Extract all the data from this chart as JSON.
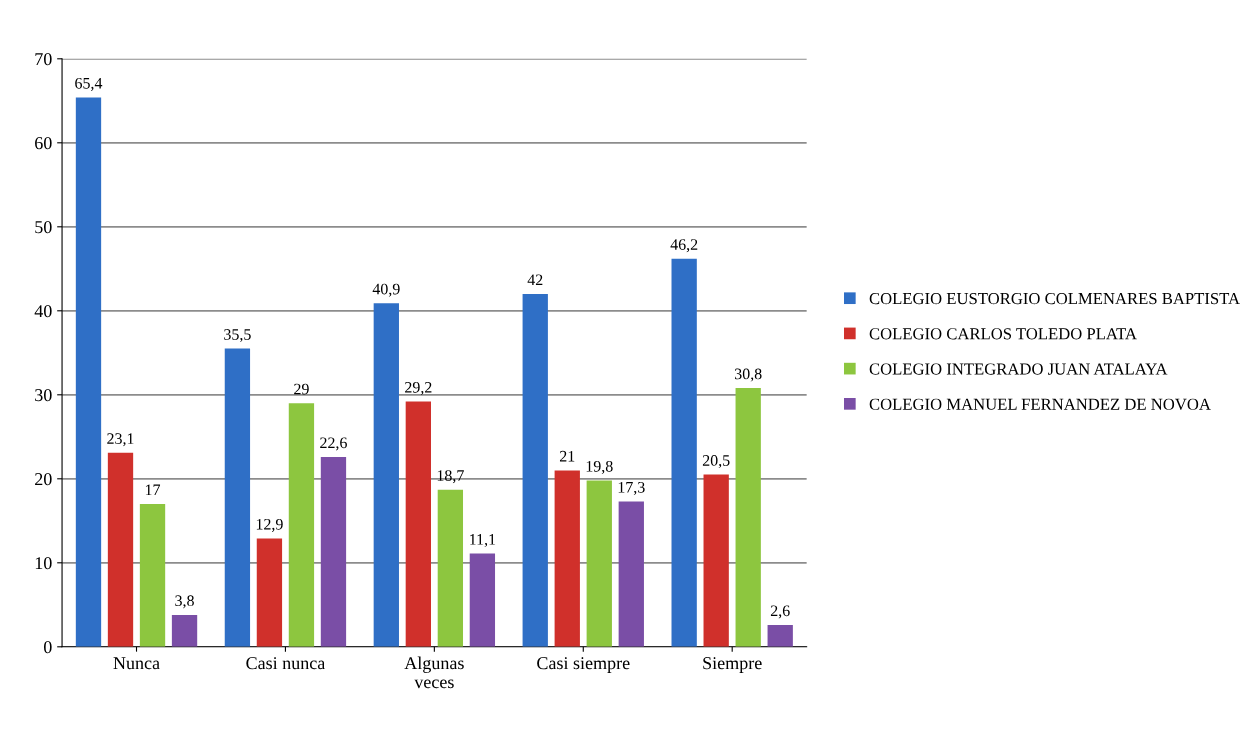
{
  "chart_data": {
    "type": "bar",
    "categories": [
      "Nunca",
      "Casi nunca",
      "Algunas\nveces",
      "Casi siempre",
      "Siempre"
    ],
    "series": [
      {
        "name": "COLEGIO EUSTORGIO COLMENARES BAPTISTA",
        "color": "#2f6fc6",
        "values": [
          65.4,
          35.5,
          40.9,
          42,
          46.2
        ],
        "value_labels": [
          "65,4",
          "35,5",
          "40,9",
          "42",
          "46,2"
        ]
      },
      {
        "name": "COLEGIO CARLOS TOLEDO PLATA",
        "color": "#d0302b",
        "values": [
          23.1,
          12.9,
          29.2,
          21,
          20.5
        ],
        "value_labels": [
          "23,1",
          "12,9",
          "29,2",
          "21",
          "20,5"
        ]
      },
      {
        "name": "COLEGIO INTEGRADO JUAN ATALAYA",
        "color": "#8dc63f",
        "values": [
          17,
          29,
          18.7,
          19.8,
          30.8
        ],
        "value_labels": [
          "17",
          "29",
          "18,7",
          "19,8",
          "30,8"
        ]
      },
      {
        "name": "COLEGIO MANUEL FERNANDEZ DE NOVOA",
        "color": "#7a4ea6",
        "values": [
          3.8,
          22.6,
          11.1,
          17.3,
          2.6
        ],
        "value_labels": [
          "3,8",
          "22,6",
          "11,1",
          "17,3",
          "2,6"
        ]
      }
    ],
    "ylim": [
      0,
      70
    ],
    "yticks": [
      0,
      10,
      20,
      30,
      40,
      50,
      60,
      70
    ],
    "grid": "y",
    "legend": "right"
  }
}
